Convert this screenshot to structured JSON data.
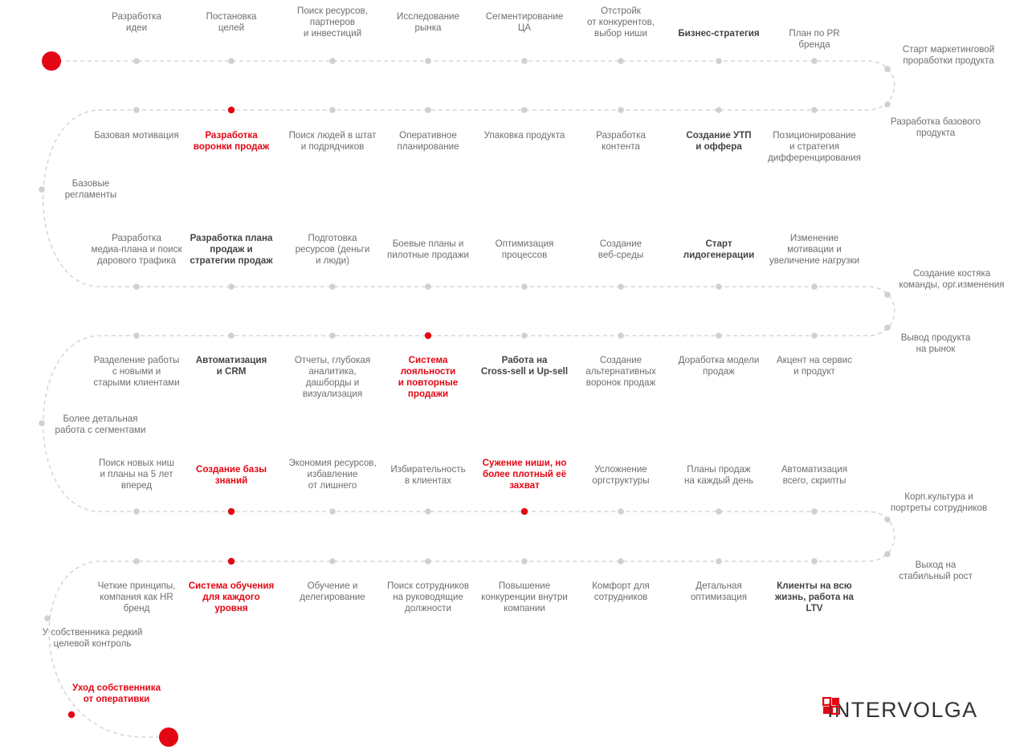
{
  "colors": {
    "accent": "#e30613",
    "path": "#cfcfcf",
    "text": "#6e6e6e",
    "bold": "#444444"
  },
  "brand": {
    "name": "INTERVOLGA"
  },
  "rows": [
    {
      "items": [
        {
          "text": "Разработка\nидеи",
          "style": "n"
        },
        {
          "text": "Постановка\nцелей",
          "style": "n"
        },
        {
          "text": "Поиск ресурсов,\nпартнеров\nи инвестиций",
          "style": "n"
        },
        {
          "text": "Исследование\nрынка",
          "style": "n"
        },
        {
          "text": "Сегментирование\nЦА",
          "style": "n"
        },
        {
          "text": "Отстройк\nот конкурентов,\nвыбор ниши",
          "style": "n"
        },
        {
          "text": "Бизнес-стратегия",
          "style": "b"
        },
        {
          "text": "План по PR\nбренда",
          "style": "n"
        }
      ]
    },
    {
      "items": [
        {
          "text": "Базовая мотивация",
          "style": "n"
        },
        {
          "text": "Разработка\nворонки продаж",
          "style": "r"
        },
        {
          "text": "Поиск людей в штат\nи подрядчиков",
          "style": "n"
        },
        {
          "text": "Оперативное\nпланирование",
          "style": "n"
        },
        {
          "text": "Упаковка продукта",
          "style": "n"
        },
        {
          "text": "Разработка\nконтента",
          "style": "n"
        },
        {
          "text": "Создание УТП\nи оффера",
          "style": "b"
        },
        {
          "text": "Позиционирование\nи стратегия\nдифференцирования",
          "style": "n"
        }
      ]
    },
    {
      "items": [
        {
          "text": "Разработка\nмедиа-плана и поиск\nдарового трафика",
          "style": "n"
        },
        {
          "text": "Разработка плана\nпродаж и\nстратегии продаж",
          "style": "b"
        },
        {
          "text": "Подготовка\nресурсов (деньги\nи люди)",
          "style": "n"
        },
        {
          "text": "Боевые планы и\nпилотные продажи",
          "style": "n"
        },
        {
          "text": "Оптимизация\nпроцессов",
          "style": "n"
        },
        {
          "text": "Создание\nвеб-среды",
          "style": "n"
        },
        {
          "text": "Старт\nлидогенерации",
          "style": "b"
        },
        {
          "text": "Изменение\nмотивации и\nувеличение нагрузки",
          "style": "n"
        }
      ]
    },
    {
      "items": [
        {
          "text": "Разделение работы\nс новыми и\nстарыми клиентами",
          "style": "n"
        },
        {
          "text": "Автоматизация\nи CRM",
          "style": "b"
        },
        {
          "text": "Отчеты, глубокая\nаналитика,\nдашборды и\nвизуализация",
          "style": "n"
        },
        {
          "text": "Система\nлояльности\nи повторные\nпродажи",
          "style": "r"
        },
        {
          "text": "Работа на\nCross-sell и Up-sell",
          "style": "b"
        },
        {
          "text": "Создание\nальтернативных\nворонок продаж",
          "style": "n"
        },
        {
          "text": "Доработка модели\nпродаж",
          "style": "n"
        },
        {
          "text": "Акцент на сервис\nи продукт",
          "style": "n"
        }
      ]
    },
    {
      "items": [
        {
          "text": "Поиск новых ниш\nи планы на 5 лет\nвперед",
          "style": "n"
        },
        {
          "text": "Создание базы\nзнаний",
          "style": "r"
        },
        {
          "text": "Экономия ресурсов,\nизбавление\nот лишнего",
          "style": "n"
        },
        {
          "text": "Избирательность\nв клиентах",
          "style": "n"
        },
        {
          "text": "Сужение ниши, но\nболее плотный её\nзахват",
          "style": "r"
        },
        {
          "text": "Усложнение\nоргструктуры",
          "style": "n"
        },
        {
          "text": "Планы продаж\nна каждый день",
          "style": "n"
        },
        {
          "text": "Автоматизация\nвсего, скрипты",
          "style": "n"
        }
      ]
    },
    {
      "items": [
        {
          "text": "Четкие принципы,\nкомпания как HR\nбренд",
          "style": "n"
        },
        {
          "text": "Система обучения\nдля каждого\nуровня",
          "style": "r"
        },
        {
          "text": "Обучение и\nделегирование",
          "style": "n"
        },
        {
          "text": "Поиск сотрудников\nна руководящие\nдолжности",
          "style": "n"
        },
        {
          "text": "Повышение\nконкуренции внутри\nкомпании",
          "style": "n"
        },
        {
          "text": "Комфорт для\nсотрудников",
          "style": "n"
        },
        {
          "text": "Детальная\nоптимизация",
          "style": "n"
        },
        {
          "text": "Клиенты на всю\nжизнь, работа на\nLTV",
          "style": "b"
        }
      ]
    }
  ],
  "side": [
    {
      "text": "Старт маркетинговой\nпроработки продукта",
      "style": "n"
    },
    {
      "text": "Разработка базового\nпродукта",
      "style": "n"
    },
    {
      "text": "Базовые\nрегламенты",
      "style": "n"
    },
    {
      "text": "Создание костяка\nкоманды, орг.изменения",
      "style": "n"
    },
    {
      "text": "Вывод продукта\nна рынок",
      "style": "n"
    },
    {
      "text": "Более детальная\nработа с сегментами",
      "style": "n"
    },
    {
      "text": "Корп.культура и\nпортреты сотрудников",
      "style": "n"
    },
    {
      "text": "Выход на\nстабильный рост",
      "style": "n"
    },
    {
      "text": "У собственника редкий\nцелевой контроль",
      "style": "n"
    },
    {
      "text": "Уход собственника\nот оперативки",
      "style": "r"
    }
  ]
}
